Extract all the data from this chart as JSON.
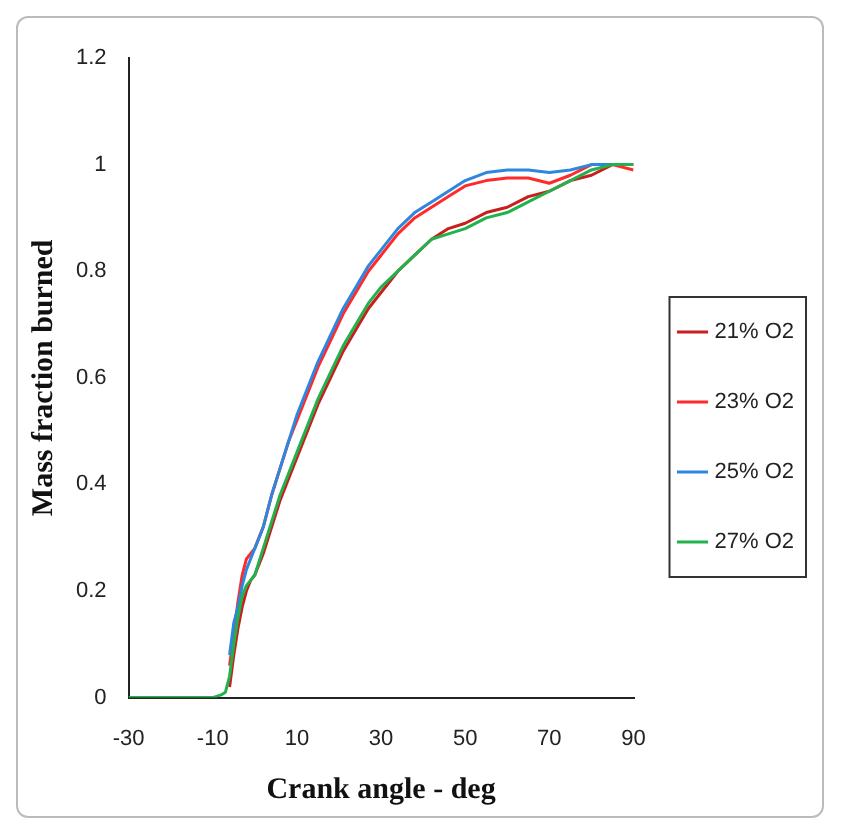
{
  "chart_data": {
    "type": "line",
    "xlabel": "Crank angle - deg",
    "ylabel": "Mass fraction burned",
    "x": [
      -30,
      -20,
      -10,
      -8,
      -7,
      -6,
      -5,
      -4,
      -3,
      -2,
      -1,
      0,
      2,
      4,
      6,
      8,
      10,
      12,
      15,
      18,
      21,
      24,
      27,
      30,
      34,
      38,
      42,
      46,
      50,
      55,
      60,
      65,
      70,
      75,
      80,
      85,
      90
    ],
    "series": [
      {
        "name": "21% O2",
        "color": "#c81e1e",
        "values": [
          null,
          null,
          null,
          null,
          null,
          0.02,
          0.08,
          0.13,
          0.17,
          0.2,
          0.22,
          0.23,
          0.27,
          0.32,
          0.37,
          0.41,
          0.45,
          0.49,
          0.55,
          0.6,
          0.65,
          0.69,
          0.73,
          0.76,
          0.8,
          0.83,
          0.86,
          0.88,
          0.89,
          0.91,
          0.92,
          0.94,
          0.95,
          0.97,
          0.98,
          1.0,
          1.0
        ]
      },
      {
        "name": "23% O2",
        "color": "#ff2a2a",
        "values": [
          null,
          null,
          null,
          null,
          null,
          0.06,
          0.12,
          0.18,
          0.23,
          0.26,
          0.27,
          0.28,
          0.32,
          0.38,
          0.43,
          0.48,
          0.52,
          0.56,
          0.62,
          0.67,
          0.72,
          0.76,
          0.8,
          0.83,
          0.87,
          0.9,
          0.92,
          0.94,
          0.96,
          0.97,
          0.975,
          0.975,
          0.965,
          0.98,
          1.0,
          1.0,
          0.99
        ]
      },
      {
        "name": "25% O2",
        "color": "#2e86de",
        "values": [
          null,
          null,
          null,
          null,
          null,
          0.08,
          0.14,
          0.17,
          0.21,
          0.24,
          0.26,
          0.28,
          0.32,
          0.38,
          0.43,
          0.48,
          0.53,
          0.57,
          0.63,
          0.68,
          0.73,
          0.77,
          0.81,
          0.84,
          0.88,
          0.91,
          0.93,
          0.95,
          0.97,
          0.985,
          0.99,
          0.99,
          0.985,
          0.99,
          1.0,
          1.0,
          1.0
        ]
      },
      {
        "name": "27% O2",
        "color": "#22b14c",
        "values": [
          0,
          0,
          0,
          0.005,
          0.01,
          0.04,
          0.1,
          0.15,
          0.19,
          0.21,
          0.22,
          0.23,
          0.28,
          0.33,
          0.38,
          0.42,
          0.46,
          0.5,
          0.56,
          0.61,
          0.66,
          0.7,
          0.74,
          0.77,
          0.8,
          0.83,
          0.86,
          0.87,
          0.88,
          0.9,
          0.91,
          0.93,
          0.95,
          0.97,
          0.99,
          1.0,
          1.0
        ]
      }
    ],
    "xlim": [
      -30,
      90
    ],
    "xticks": [
      -30,
      -10,
      10,
      30,
      50,
      70,
      90
    ],
    "ylim": [
      0,
      1.2
    ],
    "yticks": [
      0,
      0.2,
      0.4,
      0.6,
      0.8,
      1,
      1.2
    ],
    "grid": false,
    "legend": "right",
    "marker": "none",
    "line_style": "solid"
  }
}
